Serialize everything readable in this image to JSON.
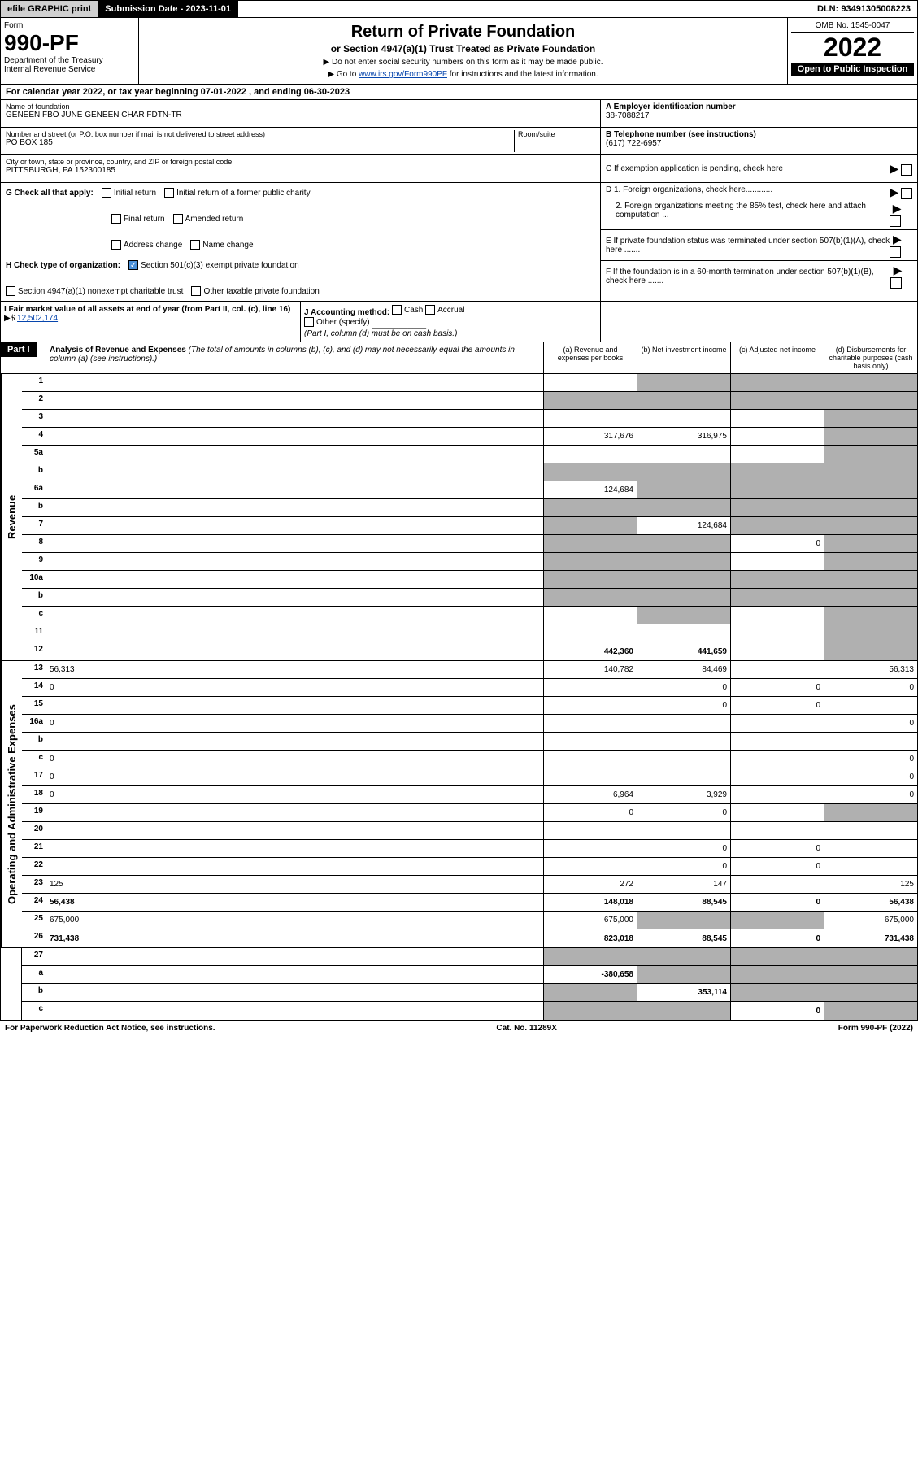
{
  "header": {
    "efile": "efile GRAPHIC print",
    "subdate_label": "Submission Date - 2023-11-01",
    "dln": "DLN: 93491305008223"
  },
  "form": {
    "form_label": "Form",
    "form_no": "990-PF",
    "dept": "Department of the Treasury",
    "irs": "Internal Revenue Service",
    "title": "Return of Private Foundation",
    "subtitle": "or Section 4947(a)(1) Trust Treated as Private Foundation",
    "note1": "▶ Do not enter social security numbers on this form as it may be made public.",
    "note2_pre": "▶ Go to ",
    "note2_link": "www.irs.gov/Form990PF",
    "note2_post": " for instructions and the latest information.",
    "omb": "OMB No. 1545-0047",
    "year": "2022",
    "public": "Open to Public Inspection"
  },
  "taxyear": "For calendar year 2022, or tax year beginning 07-01-2022                      , and ending 06-30-2023",
  "info": {
    "name_label": "Name of foundation",
    "name": "GENEEN FBO JUNE GENEEN CHAR FDTN-TR",
    "addr_label": "Number and street (or P.O. box number if mail is not delivered to street address)",
    "room_label": "Room/suite",
    "addr": "PO BOX 185",
    "city_label": "City or town, state or province, country, and ZIP or foreign postal code",
    "city": "PITTSBURGH, PA  152300185",
    "a_label": "A Employer identification number",
    "a_val": "38-7088217",
    "b_label": "B Telephone number (see instructions)",
    "b_val": "(617) 722-6957",
    "c_label": "C If exemption application is pending, check here",
    "d1_label": "D 1. Foreign organizations, check here............",
    "d2_label": "2. Foreign organizations meeting the 85% test, check here and attach computation ...",
    "e_label": "E  If private foundation status was terminated under section 507(b)(1)(A), check here .......",
    "f_label": "F  If the foundation is in a 60-month termination under section 507(b)(1)(B), check here ......."
  },
  "g": {
    "label": "G Check all that apply:",
    "initial": "Initial return",
    "final": "Final return",
    "addrchg": "Address change",
    "initial_former": "Initial return of a former public charity",
    "amended": "Amended return",
    "namechg": "Name change"
  },
  "h": {
    "label": "H Check type of organization:",
    "opt1": "Section 501(c)(3) exempt private foundation",
    "opt2": "Section 4947(a)(1) nonexempt charitable trust",
    "opt3": "Other taxable private foundation"
  },
  "i": {
    "label": "I Fair market value of all assets at end of year (from Part II, col. (c), line 16)",
    "value": "12,502,174"
  },
  "j": {
    "label": "J Accounting method:",
    "cash": "Cash",
    "accrual": "Accrual",
    "other": "Other (specify)",
    "note": "(Part I, column (d) must be on cash basis.)"
  },
  "part1": {
    "label": "Part I",
    "title": "Analysis of Revenue and Expenses",
    "subtitle": "(The total of amounts in columns (b), (c), and (d) may not necessarily equal the amounts in column (a) (see instructions).)",
    "col_a": "(a)  Revenue and expenses per books",
    "col_b": "(b)  Net investment income",
    "col_c": "(c)  Adjusted net income",
    "col_d": "(d)  Disbursements for charitable purposes (cash basis only)"
  },
  "vert": {
    "revenue": "Revenue",
    "expenses": "Operating and Administrative Expenses"
  },
  "rows": [
    {
      "n": "1",
      "d": "",
      "a": "",
      "b": "",
      "c": "",
      "shade": [
        false,
        true,
        true,
        true
      ]
    },
    {
      "n": "2",
      "d": "",
      "a": "",
      "b": "",
      "c": "",
      "shade": [
        true,
        true,
        true,
        true
      ]
    },
    {
      "n": "3",
      "d": "",
      "a": "",
      "b": "",
      "c": "",
      "shade": [
        false,
        false,
        false,
        true
      ]
    },
    {
      "n": "4",
      "d": "",
      "a": "317,676",
      "b": "316,975",
      "c": "",
      "shade": [
        false,
        false,
        false,
        true
      ]
    },
    {
      "n": "5a",
      "d": "",
      "a": "",
      "b": "",
      "c": "",
      "shade": [
        false,
        false,
        false,
        true
      ]
    },
    {
      "n": "b",
      "d": "",
      "a": "",
      "b": "",
      "c": "",
      "shade": [
        true,
        true,
        true,
        true
      ]
    },
    {
      "n": "6a",
      "d": "",
      "a": "124,684",
      "b": "",
      "c": "",
      "shade": [
        false,
        true,
        true,
        true
      ]
    },
    {
      "n": "b",
      "d": "",
      "a": "",
      "b": "",
      "c": "",
      "shade": [
        true,
        true,
        true,
        true
      ]
    },
    {
      "n": "7",
      "d": "",
      "a": "",
      "b": "124,684",
      "c": "",
      "shade": [
        true,
        false,
        true,
        true
      ]
    },
    {
      "n": "8",
      "d": "",
      "a": "",
      "b": "",
      "c": "0",
      "shade": [
        true,
        true,
        false,
        true
      ]
    },
    {
      "n": "9",
      "d": "",
      "a": "",
      "b": "",
      "c": "",
      "shade": [
        true,
        true,
        false,
        true
      ]
    },
    {
      "n": "10a",
      "d": "",
      "a": "",
      "b": "",
      "c": "",
      "shade": [
        true,
        true,
        true,
        true
      ]
    },
    {
      "n": "b",
      "d": "",
      "a": "",
      "b": "",
      "c": "",
      "shade": [
        true,
        true,
        true,
        true
      ]
    },
    {
      "n": "c",
      "d": "",
      "a": "",
      "b": "",
      "c": "",
      "shade": [
        false,
        true,
        false,
        true
      ]
    },
    {
      "n": "11",
      "d": "",
      "a": "",
      "b": "",
      "c": "",
      "shade": [
        false,
        false,
        false,
        true
      ]
    },
    {
      "n": "12",
      "d": "",
      "a": "442,360",
      "b": "441,659",
      "c": "",
      "shade": [
        false,
        false,
        false,
        true
      ],
      "bold": true
    }
  ],
  "exp_rows": [
    {
      "n": "13",
      "d": "56,313",
      "a": "140,782",
      "b": "84,469",
      "c": ""
    },
    {
      "n": "14",
      "d": "0",
      "a": "",
      "b": "0",
      "c": "0"
    },
    {
      "n": "15",
      "d": "",
      "a": "",
      "b": "0",
      "c": "0"
    },
    {
      "n": "16a",
      "d": "0",
      "a": "",
      "b": "",
      "c": ""
    },
    {
      "n": "b",
      "d": "",
      "a": "",
      "b": "",
      "c": ""
    },
    {
      "n": "c",
      "d": "0",
      "a": "",
      "b": "",
      "c": ""
    },
    {
      "n": "17",
      "d": "0",
      "a": "",
      "b": "",
      "c": ""
    },
    {
      "n": "18",
      "d": "0",
      "a": "6,964",
      "b": "3,929",
      "c": ""
    },
    {
      "n": "19",
      "d": "",
      "a": "0",
      "b": "0",
      "c": "",
      "shade_d": true
    },
    {
      "n": "20",
      "d": "",
      "a": "",
      "b": "",
      "c": ""
    },
    {
      "n": "21",
      "d": "",
      "a": "",
      "b": "0",
      "c": "0"
    },
    {
      "n": "22",
      "d": "",
      "a": "",
      "b": "0",
      "c": "0"
    },
    {
      "n": "23",
      "d": "125",
      "a": "272",
      "b": "147",
      "c": ""
    },
    {
      "n": "24",
      "d": "56,438",
      "a": "148,018",
      "b": "88,545",
      "c": "0",
      "bold": true
    },
    {
      "n": "25",
      "d": "675,000",
      "a": "675,000",
      "b": "",
      "c": "",
      "shade_b": true,
      "shade_c": true
    },
    {
      "n": "26",
      "d": "731,438",
      "a": "823,018",
      "b": "88,545",
      "c": "0",
      "bold": true
    }
  ],
  "final_rows": [
    {
      "n": "27",
      "d": "",
      "a": "",
      "b": "",
      "c": "",
      "shade": [
        true,
        true,
        true,
        true
      ]
    },
    {
      "n": "a",
      "d": "",
      "a": "-380,658",
      "b": "",
      "c": "",
      "shade": [
        false,
        true,
        true,
        true
      ],
      "bold": true
    },
    {
      "n": "b",
      "d": "",
      "a": "",
      "b": "353,114",
      "c": "",
      "shade": [
        true,
        false,
        true,
        true
      ],
      "bold": true
    },
    {
      "n": "c",
      "d": "",
      "a": "",
      "b": "",
      "c": "0",
      "shade": [
        true,
        true,
        false,
        true
      ],
      "bold": true
    }
  ],
  "footer": {
    "left": "For Paperwork Reduction Act Notice, see instructions.",
    "mid": "Cat. No. 11289X",
    "right": "Form 990-PF (2022)"
  }
}
